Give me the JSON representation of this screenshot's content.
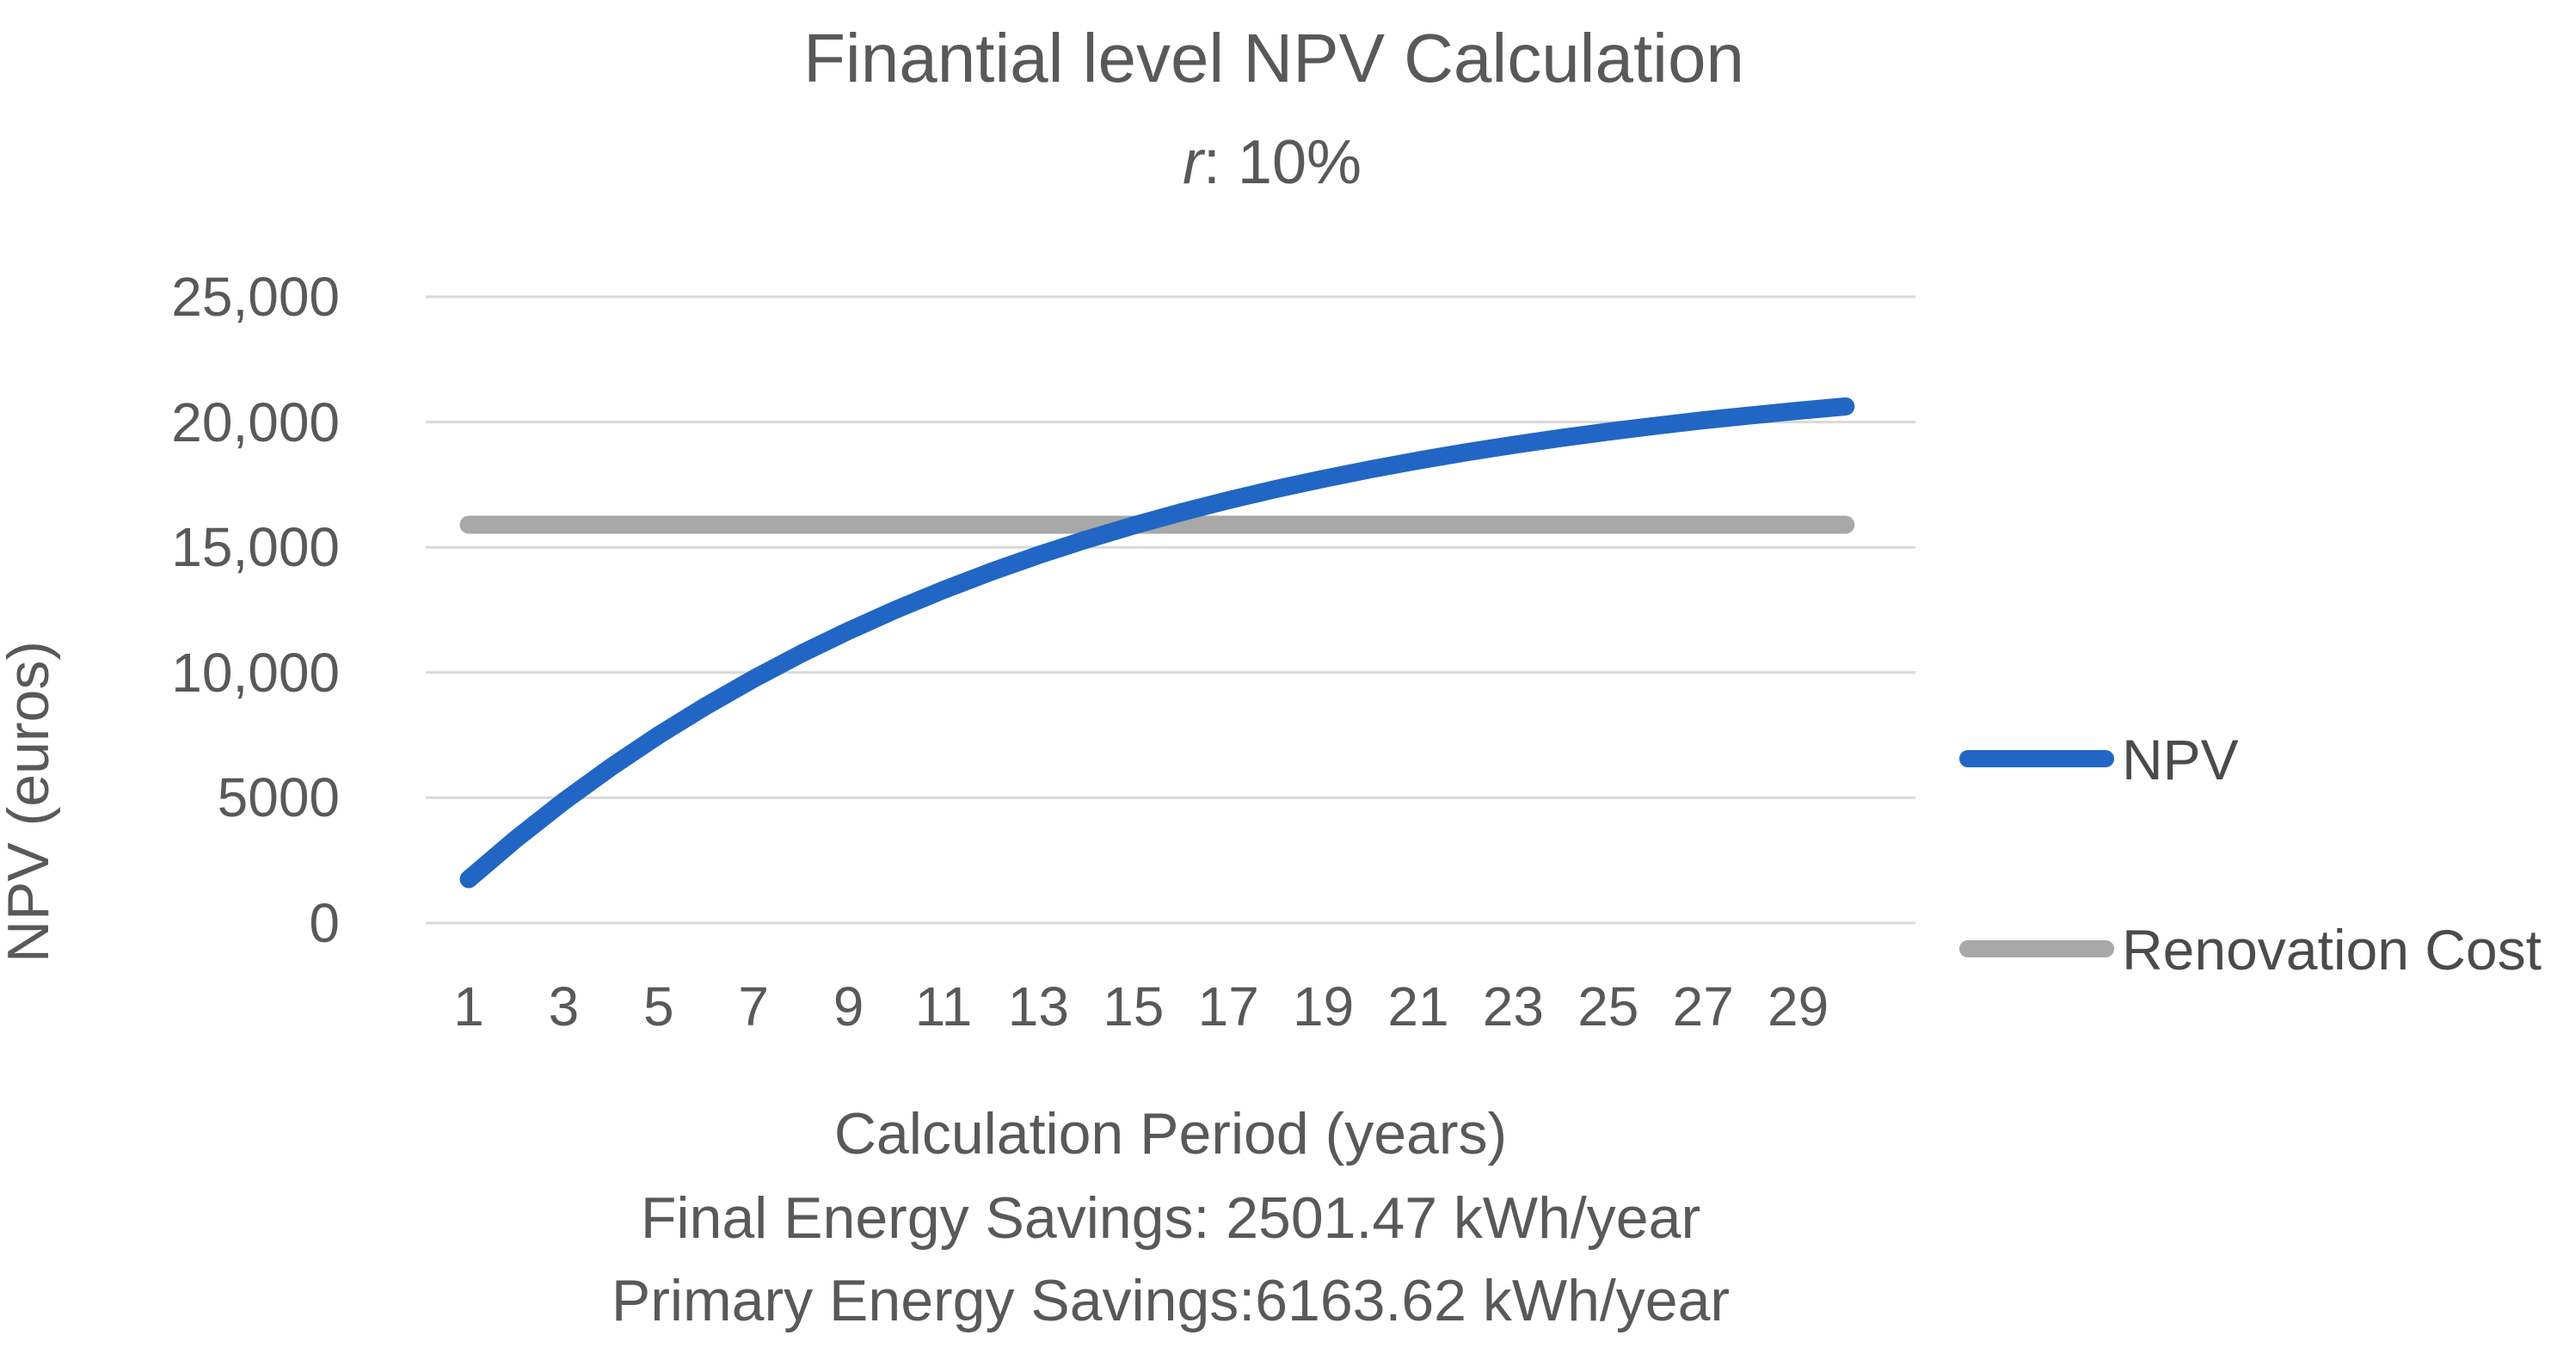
{
  "chart_data": {
    "type": "line",
    "title": "Finantial level NPV Calculation",
    "subtitle": {
      "var": "r",
      "rest": ": 10%"
    },
    "xlabel": "Calculation Period (years)",
    "ylabel": "NPV (euros)",
    "annotations": [
      "Final Energy Savings: 2501.47 kWh/year",
      "Primary Energy Savings:6163.62 kWh/year"
    ],
    "x": [
      1,
      2,
      3,
      4,
      5,
      6,
      7,
      8,
      9,
      10,
      11,
      12,
      13,
      14,
      15,
      16,
      17,
      18,
      19,
      20,
      21,
      22,
      23,
      24,
      25,
      26,
      27,
      28,
      29,
      30
    ],
    "x_tick_labels": [
      "1",
      "3",
      "5",
      "7",
      "9",
      "11",
      "13",
      "15",
      "17",
      "19",
      "21",
      "23",
      "25",
      "27",
      "29"
    ],
    "y_ticks": [
      {
        "value": 0,
        "label": "0"
      },
      {
        "value": 5000,
        "label": "5000"
      },
      {
        "value": 10000,
        "label": "10,000"
      },
      {
        "value": 15000,
        "label": "15,000"
      },
      {
        "value": 20000,
        "label": "20,000"
      },
      {
        "value": 25000,
        "label": "25,000"
      }
    ],
    "ylim": [
      0,
      25000
    ],
    "grid": "horizontal",
    "legend_position": "right",
    "series": [
      {
        "name": "NPV",
        "color": "#2166C4",
        "values": [
          1750,
          3365,
          4855,
          6230,
          7499,
          8669,
          9750,
          10747,
          11666,
          12515,
          13298,
          14021,
          14688,
          15303,
          15870,
          16394,
          16878,
          17324,
          17735,
          18115,
          18465,
          18788,
          19087,
          19362,
          19616,
          19850,
          20067,
          20266,
          20450,
          20620
        ]
      },
      {
        "name": "Renovation Cost",
        "color": "#A8A8A8",
        "constant_value": 15900
      }
    ],
    "colors": {
      "gridline": "#D9D9D9",
      "text": "#595959"
    }
  }
}
